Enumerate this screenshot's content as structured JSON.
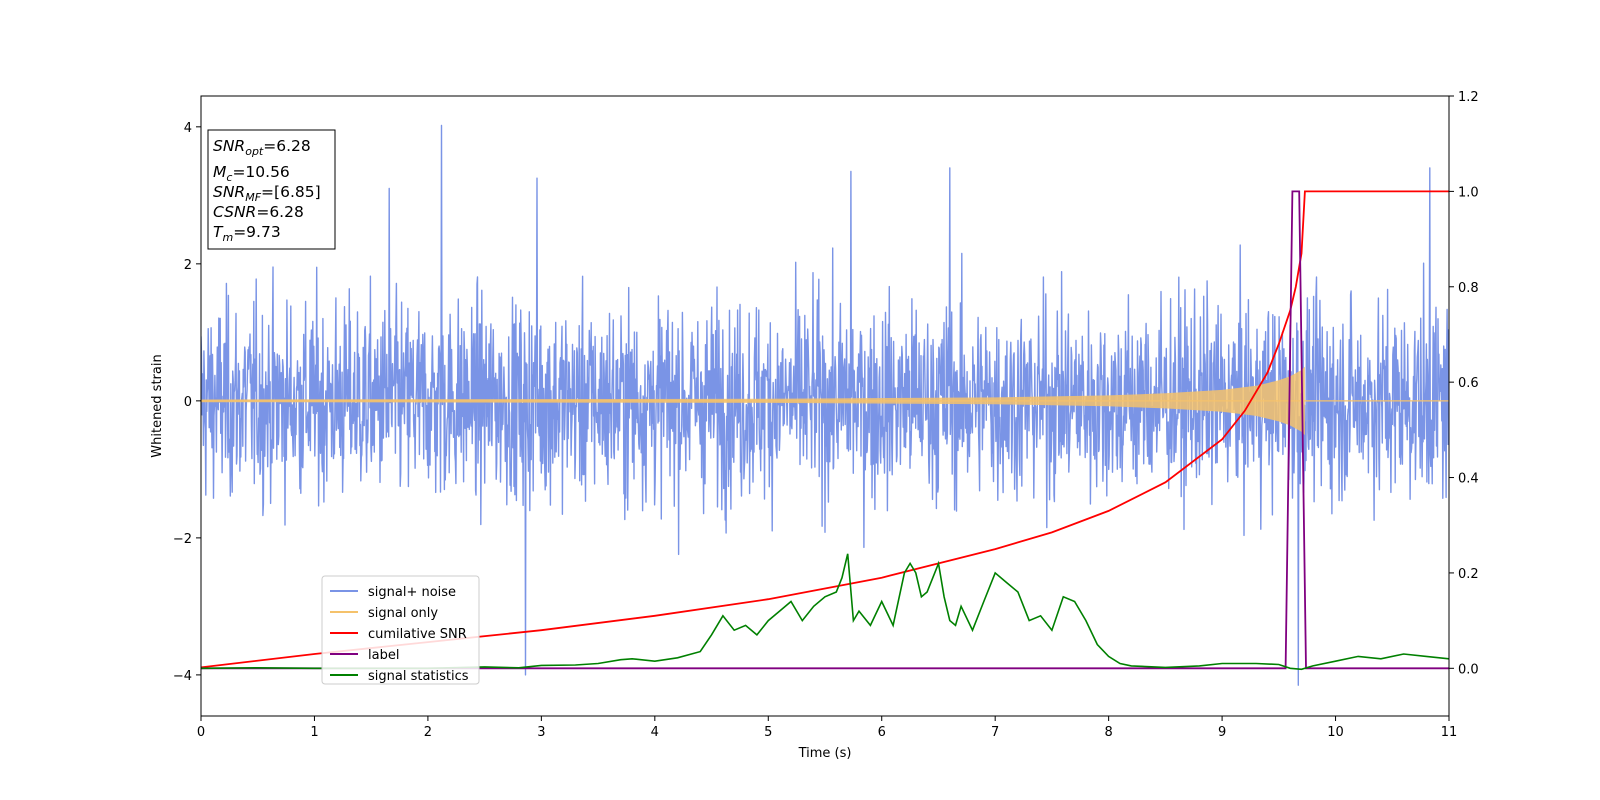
{
  "chart_data": {
    "type": "line",
    "xlabel": "Time (s)",
    "ylabel": "Whitened strain",
    "xlim": [
      0,
      11
    ],
    "ylim": [
      -4.6,
      4.45
    ],
    "y2lim": [
      -0.1,
      1.2
    ],
    "xticks": [
      "0",
      "1",
      "2",
      "3",
      "4",
      "5",
      "6",
      "7",
      "8",
      "9",
      "10",
      "11"
    ],
    "yticks": [
      "4",
      "2",
      "0",
      "−2",
      "−4"
    ],
    "y2ticks": [
      "1.2",
      "1.0",
      "0.8",
      "0.6",
      "0.4",
      "0.2",
      "0.0"
    ],
    "grid": false,
    "legend_position": "lower-left",
    "annotations": [
      {
        "symbol": "SNR",
        "sub": "opt",
        "value": "=6.28"
      },
      {
        "symbol": "M",
        "sub": "c",
        "value": "=10.56"
      },
      {
        "symbol": "SNR",
        "sub": "MF",
        "value": "=[6.85]"
      },
      {
        "symbol": "CSNR",
        "sub": "",
        "value": "=6.28"
      },
      {
        "symbol": "T",
        "sub": "m",
        "value": "=9.73"
      }
    ],
    "series": [
      {
        "name": "signal+ noise",
        "axis": "left",
        "color": "#7a94e6",
        "description_envelope": {
          "typical_amplitude": 1.0,
          "max_peak": 4.0,
          "min_peak": -4.15
        },
        "notable_peaks": [
          [
            2.12,
            4.02
          ],
          [
            2.86,
            -4.0
          ],
          [
            9.67,
            -4.15
          ],
          [
            1.66,
            3.1
          ],
          [
            2.96,
            3.25
          ],
          [
            5.73,
            3.35
          ],
          [
            6.6,
            3.4
          ],
          [
            10.83,
            3.4
          ]
        ]
      },
      {
        "name": "signal only",
        "axis": "left",
        "color": "#f5c26b",
        "envelope": {
          "x": [
            0,
            5,
            7,
            8,
            8.5,
            9,
            9.3,
            9.5,
            9.6,
            9.7,
            9.73
          ],
          "amplitude": [
            0.02,
            0.03,
            0.05,
            0.08,
            0.11,
            0.16,
            0.22,
            0.3,
            0.36,
            0.45,
            0.5
          ]
        }
      },
      {
        "name": "cumilative SNR",
        "axis": "right",
        "color": "#ff0000",
        "x": [
          0,
          1,
          2,
          3,
          4,
          5,
          6,
          7,
          7.5,
          8,
          8.5,
          9,
          9.2,
          9.4,
          9.5,
          9.6,
          9.65,
          9.7,
          9.73,
          11
        ],
        "values": [
          0.002,
          0.03,
          0.055,
          0.08,
          0.11,
          0.145,
          0.19,
          0.25,
          0.285,
          0.33,
          0.39,
          0.48,
          0.54,
          0.62,
          0.68,
          0.75,
          0.8,
          0.87,
          1.0,
          1.0
        ]
      },
      {
        "name": "label",
        "axis": "right",
        "color": "#800080",
        "x": [
          0,
          9.56,
          9.62,
          9.68,
          9.74,
          11
        ],
        "values": [
          0.0,
          0.0,
          1.0,
          1.0,
          0.0,
          0.0
        ]
      },
      {
        "name": "signal statistics",
        "axis": "right",
        "color": "#008000",
        "x": [
          0,
          0.5,
          1,
          2,
          2.5,
          2.8,
          3.0,
          3.3,
          3.5,
          3.7,
          3.8,
          4.0,
          4.2,
          4.4,
          4.5,
          4.6,
          4.7,
          4.8,
          4.9,
          5.0,
          5.1,
          5.2,
          5.3,
          5.4,
          5.5,
          5.6,
          5.65,
          5.7,
          5.75,
          5.8,
          5.9,
          6.0,
          6.1,
          6.2,
          6.25,
          6.3,
          6.35,
          6.4,
          6.5,
          6.55,
          6.6,
          6.65,
          6.7,
          6.8,
          6.9,
          7.0,
          7.1,
          7.2,
          7.3,
          7.4,
          7.5,
          7.6,
          7.7,
          7.8,
          7.9,
          8.0,
          8.1,
          8.2,
          8.5,
          8.8,
          9.0,
          9.3,
          9.5,
          9.6,
          9.7,
          9.8,
          10.0,
          10.2,
          10.4,
          10.6,
          10.8,
          11.0
        ],
        "values": [
          0.0,
          0.001,
          0.0,
          0.0,
          0.003,
          0.001,
          0.006,
          0.007,
          0.01,
          0.018,
          0.02,
          0.015,
          0.022,
          0.035,
          0.07,
          0.11,
          0.08,
          0.09,
          0.07,
          0.1,
          0.12,
          0.14,
          0.1,
          0.13,
          0.15,
          0.16,
          0.19,
          0.24,
          0.1,
          0.12,
          0.09,
          0.14,
          0.09,
          0.2,
          0.22,
          0.2,
          0.15,
          0.16,
          0.22,
          0.15,
          0.1,
          0.09,
          0.13,
          0.08,
          0.14,
          0.2,
          0.18,
          0.16,
          0.1,
          0.11,
          0.08,
          0.15,
          0.14,
          0.1,
          0.05,
          0.025,
          0.01,
          0.005,
          0.002,
          0.005,
          0.01,
          0.01,
          0.008,
          0.0,
          -0.002,
          0.005,
          0.015,
          0.025,
          0.02,
          0.03,
          0.025,
          0.02
        ]
      }
    ]
  }
}
